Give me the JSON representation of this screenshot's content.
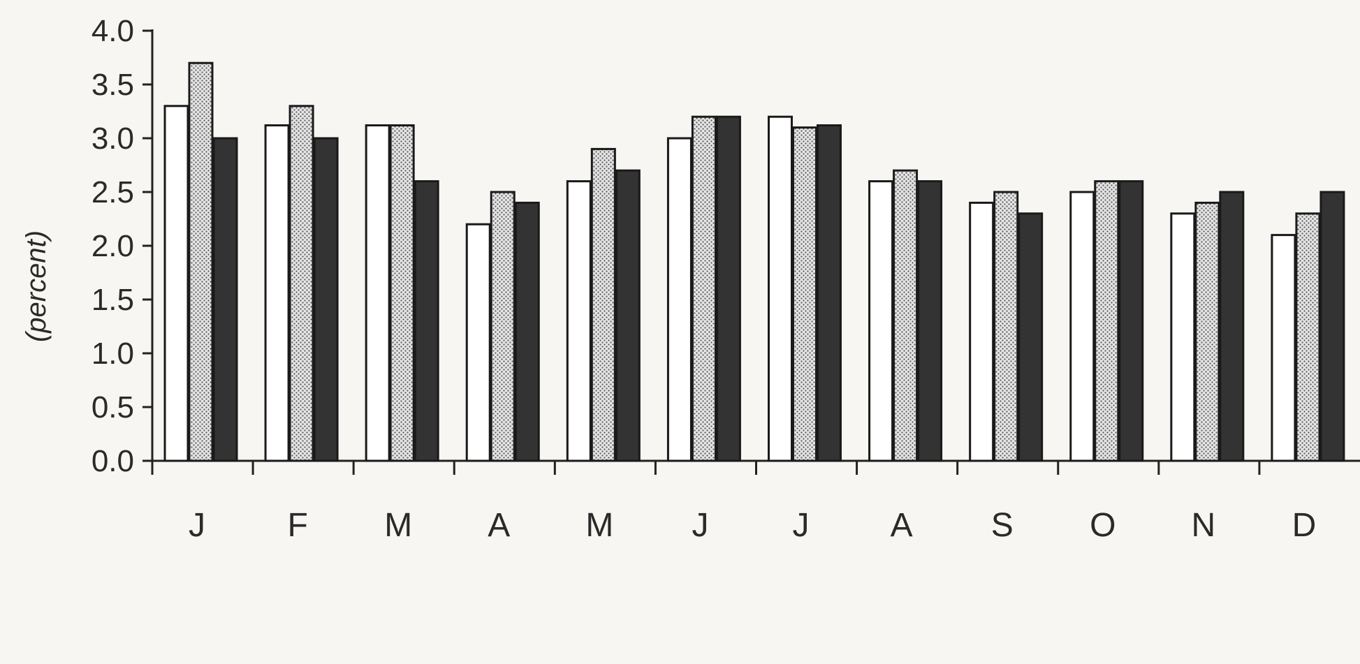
{
  "chart_data": {
    "type": "bar",
    "title": "",
    "xlabel": "",
    "ylabel": "(percent)",
    "categories": [
      "J",
      "F",
      "M",
      "A",
      "M",
      "J",
      "J",
      "A",
      "S",
      "O",
      "N",
      "D"
    ],
    "series": [
      {
        "values": [
          3.3,
          3.12,
          3.12,
          2.2,
          2.6,
          3.0,
          3.2,
          2.6,
          2.4,
          2.5,
          2.3,
          2.1
        ],
        "fill": "#ffffff",
        "pattern": "none"
      },
      {
        "values": [
          3.7,
          3.3,
          3.12,
          2.5,
          2.9,
          3.2,
          3.1,
          2.7,
          2.5,
          2.6,
          2.4,
          2.3
        ],
        "fill": "#d8d8d8",
        "pattern": "stipple"
      },
      {
        "values": [
          3.0,
          3.0,
          2.6,
          2.4,
          2.7,
          3.2,
          3.12,
          2.6,
          2.3,
          2.6,
          2.5,
          2.5
        ],
        "fill": "#333333",
        "pattern": "none"
      }
    ],
    "ylim": [
      0,
      4.0
    ],
    "yticks": [
      "0.0",
      "0.5",
      "1.0",
      "1.5",
      "2.0",
      "2.5",
      "3.0",
      "3.5",
      "4.0"
    ],
    "grid": false,
    "legend": "none"
  }
}
